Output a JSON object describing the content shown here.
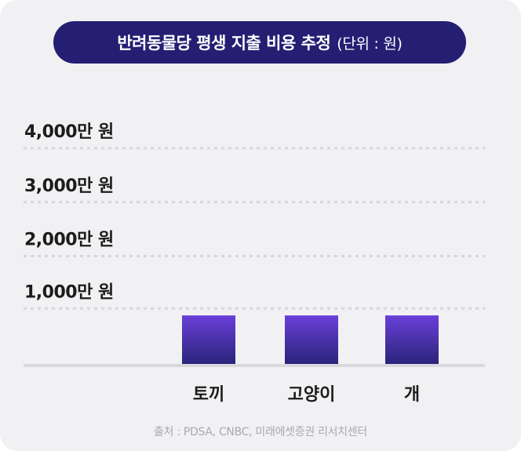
{
  "title": "반려동물당 평생 지출 비용 추정",
  "unit_note": "(단위 : 원)",
  "source": "출처 : PDSA, CNBC, 미래에셋증권 리서치센터",
  "colors": {
    "background": "#f1f1f3",
    "title_pill": "#241f73",
    "bar_top": "#6a3fd9",
    "bar_bottom": "#2a247a",
    "gridline": "#d6d6da",
    "baseline": "#d9d9dd"
  },
  "chart_data": {
    "type": "bar",
    "categories": [
      "토끼",
      "고양이",
      "개"
    ],
    "values": [
      900,
      900,
      900
    ],
    "unit": "만 원",
    "ylim": [
      0,
      4000
    ],
    "yticks": [
      1000,
      2000,
      3000,
      4000
    ],
    "ytick_labels": [
      "1,000만 원",
      "2,000만 원",
      "3,000만 원",
      "4,000만 원"
    ],
    "grid": true
  }
}
